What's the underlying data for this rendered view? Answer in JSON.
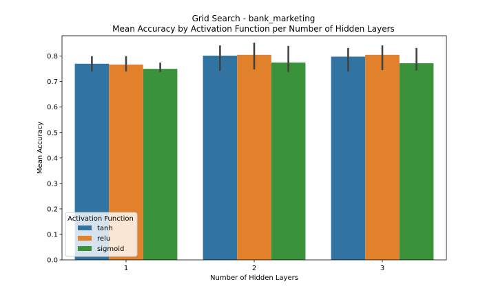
{
  "chart_data": {
    "type": "bar",
    "title": "Grid Search - bank_marketing",
    "subtitle": "Mean Accuracy by Activation Function per Number of Hidden Layers",
    "xlabel": "Number of Hidden Layers",
    "ylabel": "Mean Accuracy",
    "categories": [
      "1",
      "2",
      "3"
    ],
    "ylim": [
      0,
      0.88
    ],
    "yticks": [
      0.0,
      0.1,
      0.2,
      0.3,
      0.4,
      0.5,
      0.6,
      0.7,
      0.8
    ],
    "ytick_labels": [
      "0.0",
      "0.1",
      "0.2",
      "0.3",
      "0.4",
      "0.5",
      "0.6",
      "0.7",
      "0.8"
    ],
    "grid": false,
    "legend": {
      "title": "Activation Function",
      "placement": "lower-left"
    },
    "series": [
      {
        "name": "tanh",
        "color": "#3274a1",
        "values": [
          0.77,
          0.802,
          0.798
        ],
        "err_low": [
          0.74,
          0.743,
          0.74
        ],
        "err_high": [
          0.8,
          0.842,
          0.832
        ]
      },
      {
        "name": "relu",
        "color": "#e1812c",
        "values": [
          0.767,
          0.805,
          0.805
        ],
        "err_low": [
          0.74,
          0.748,
          0.745
        ],
        "err_high": [
          0.8,
          0.853,
          0.842
        ]
      },
      {
        "name": "sigmoid",
        "color": "#3a923a",
        "values": [
          0.75,
          0.775,
          0.772
        ],
        "err_low": [
          0.737,
          0.738,
          0.743
        ],
        "err_high": [
          0.775,
          0.84,
          0.832
        ]
      }
    ]
  }
}
